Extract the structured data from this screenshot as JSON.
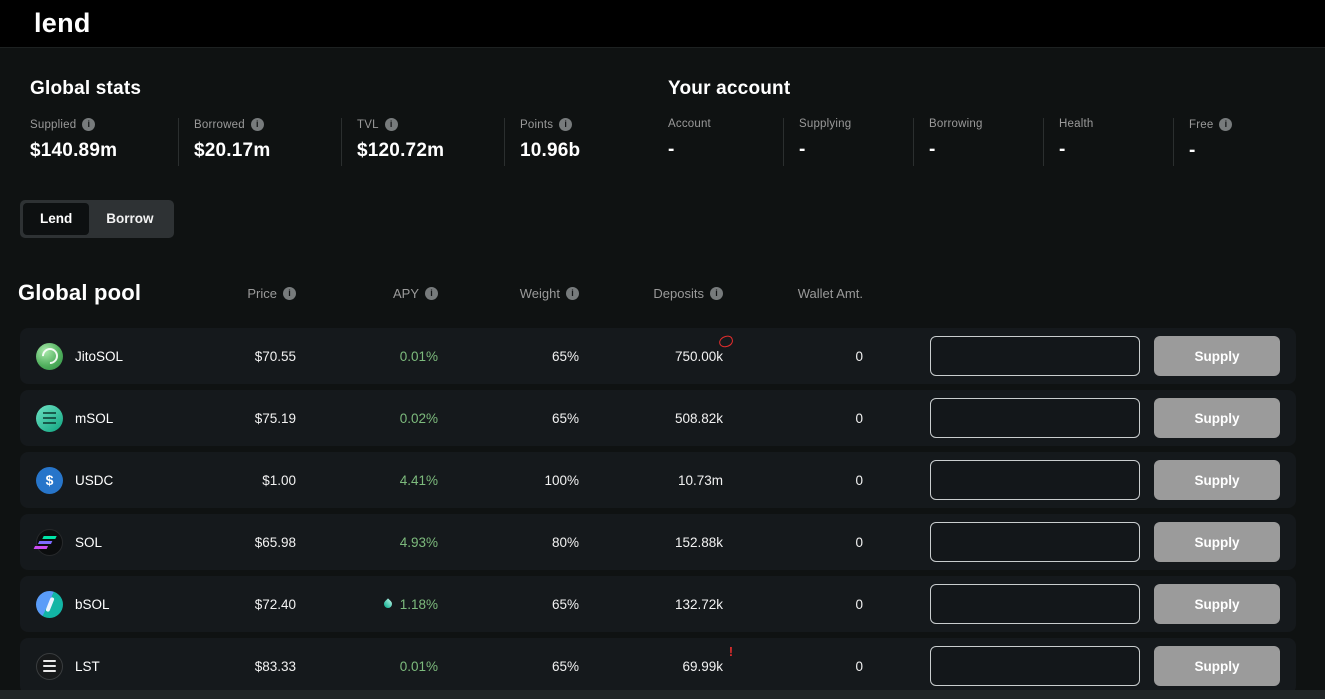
{
  "colors": {
    "accent_green": "#7dbb7d",
    "warning_red": "#e32d2d",
    "usdc_blue": "#2775ca",
    "row_bg": "#15191c",
    "topbar_bg": "#000000"
  },
  "header": {
    "logo": "lend"
  },
  "global_stats": {
    "title": "Global stats",
    "items": [
      {
        "label": "Supplied",
        "value": "$140.89m"
      },
      {
        "label": "Borrowed",
        "value": "$20.17m"
      },
      {
        "label": "TVL",
        "value": "$120.72m"
      },
      {
        "label": "Points",
        "value": "10.96b"
      }
    ]
  },
  "account": {
    "title": "Your account",
    "items": [
      {
        "label": "Account",
        "value": "-"
      },
      {
        "label": "Supplying",
        "value": "-"
      },
      {
        "label": "Borrowing",
        "value": "-"
      },
      {
        "label": "Health",
        "value": "-"
      },
      {
        "label": "Free",
        "value": "-"
      }
    ]
  },
  "tabs": {
    "lend": "Lend",
    "borrow": "Borrow"
  },
  "pool": {
    "title": "Global pool",
    "columns": {
      "price": "Price",
      "apy": "APY",
      "weight": "Weight",
      "deposits": "Deposits",
      "wallet": "Wallet Amt."
    },
    "rows": [
      {
        "icon": "jitosol",
        "asset": "JitoSOL",
        "price": "$70.55",
        "apy": "0.01%",
        "weight": "65%",
        "deposits": "750.00k",
        "wallet": "0",
        "input_value": "",
        "action": "Supply",
        "deposit_flag": "scribble",
        "apy_flame": false
      },
      {
        "icon": "msol",
        "asset": "mSOL",
        "price": "$75.19",
        "apy": "0.02%",
        "weight": "65%",
        "deposits": "508.82k",
        "wallet": "0",
        "input_value": "",
        "action": "Supply",
        "deposit_flag": "",
        "apy_flame": false
      },
      {
        "icon": "usdc",
        "asset": "USDC",
        "price": "$1.00",
        "apy": "4.41%",
        "weight": "100%",
        "deposits": "10.73m",
        "wallet": "0",
        "input_value": "",
        "action": "Supply",
        "deposit_flag": "",
        "apy_flame": false
      },
      {
        "icon": "sol",
        "asset": "SOL",
        "price": "$65.98",
        "apy": "4.93%",
        "weight": "80%",
        "deposits": "152.88k",
        "wallet": "0",
        "input_value": "",
        "action": "Supply",
        "deposit_flag": "",
        "apy_flame": false
      },
      {
        "icon": "bsol",
        "asset": "bSOL",
        "price": "$72.40",
        "apy": "1.18%",
        "weight": "65%",
        "deposits": "132.72k",
        "wallet": "0",
        "input_value": "",
        "action": "Supply",
        "deposit_flag": "",
        "apy_flame": true
      },
      {
        "icon": "lst",
        "asset": "LST",
        "price": "$83.33",
        "apy": "0.01%",
        "weight": "65%",
        "deposits": "69.99k",
        "wallet": "0",
        "input_value": "",
        "action": "Supply",
        "deposit_flag": "exclaim",
        "apy_flame": false
      }
    ]
  }
}
